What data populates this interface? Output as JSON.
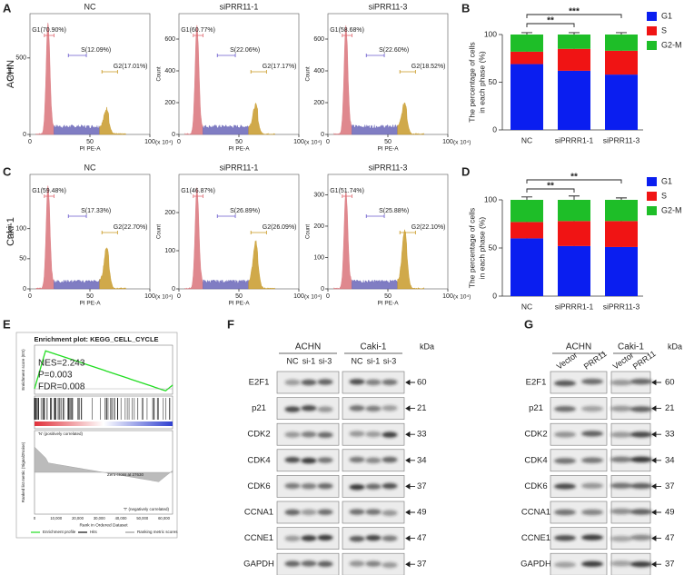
{
  "panel_labels": [
    "A",
    "B",
    "C",
    "D",
    "E",
    "F",
    "G"
  ],
  "flow": [
    {
      "row_label": "ACHN",
      "plots": [
        {
          "title": "NC",
          "y_label": "Count",
          "x_label": "PI PE-A",
          "x_unit": "(x 10⁴)",
          "xlim": [
            0,
            100
          ],
          "xticks": [
            0,
            50,
            100
          ],
          "ylim": [
            0,
            790
          ],
          "yticks": [
            0,
            500
          ],
          "gates": [
            "G1(70.90%)",
            "S(12.09%)",
            "G2(17.01%)"
          ]
        },
        {
          "title": "siPRR11-1",
          "y_label": "Count",
          "x_label": "PI PE-A",
          "x_unit": "(x 10⁴)",
          "xlim": [
            0,
            100
          ],
          "xticks": [
            0,
            50,
            100
          ],
          "ylim": [
            0,
            760
          ],
          "yticks": [
            0,
            200,
            400,
            600
          ],
          "gates": [
            "G1(60.77%)",
            "S(22.06%)",
            "G2(17.17%)"
          ]
        },
        {
          "title": "siPRR11-3",
          "y_label": "Count",
          "x_label": "PI PE-A",
          "x_unit": "(x 10⁴)",
          "xlim": [
            0,
            100
          ],
          "xticks": [
            0,
            50,
            100
          ],
          "ylim": [
            0,
            760
          ],
          "yticks": [
            0,
            200,
            400,
            600
          ],
          "gates": [
            "G1(58.68%)",
            "S(22.60%)",
            "G2(18.52%)"
          ]
        }
      ]
    },
    {
      "row_label": "Caki-1",
      "plots": [
        {
          "title": "NC",
          "y_label": "Count",
          "x_label": "PI PE-A",
          "x_unit": "(x 10⁴)",
          "xlim": [
            0,
            100
          ],
          "xticks": [
            0,
            50,
            100
          ],
          "ylim": [
            0,
            190
          ],
          "yticks": [
            0,
            50,
            100
          ],
          "gates": [
            "G1(59.48%)",
            "S(17.33%)",
            "G2(22.70%)"
          ]
        },
        {
          "title": "siPRR11-1",
          "y_label": "Count",
          "x_label": "PI PE-A",
          "x_unit": "(x 10⁴)",
          "xlim": [
            0,
            100
          ],
          "xticks": [
            0,
            50,
            100
          ],
          "ylim": [
            0,
            300
          ],
          "yticks": [
            0,
            100,
            200
          ],
          "gates": [
            "G1(46.87%)",
            "S(26.89%)",
            "G2(26.09%)"
          ]
        },
        {
          "title": "siPRR11-3",
          "y_label": "Count",
          "x_label": "PI PE-A",
          "x_unit": "(x 10⁴)",
          "xlim": [
            0,
            100
          ],
          "xticks": [
            0,
            50,
            100
          ],
          "ylim": [
            0,
            365
          ],
          "yticks": [
            0,
            100,
            200,
            300
          ],
          "gates": [
            "G1(51.74%)",
            "S(25.88%)",
            "G2(22.10%)"
          ]
        }
      ]
    }
  ],
  "chart_data": [
    {
      "type": "bar",
      "stacked": true,
      "y_label": [
        "The percentage of cells",
        "in each phase (%)"
      ],
      "categories": [
        "NC",
        "siPRRR1-1",
        "siPRR11-3"
      ],
      "ylim": [
        0,
        100
      ],
      "yticks": [
        0,
        50,
        100
      ],
      "legend": "upper right",
      "annotations": [
        "**",
        "***"
      ],
      "series": [
        {
          "name": "G1",
          "color": "#0a1ef0",
          "values": [
            69,
            62,
            58
          ],
          "errors": [
            3,
            3,
            3
          ]
        },
        {
          "name": "S",
          "color": "#f01414",
          "values": [
            13,
            23,
            25
          ],
          "errors": [
            2,
            2,
            2
          ]
        },
        {
          "name": "G2-M",
          "color": "#1ebe28",
          "values": [
            18,
            15,
            17
          ],
          "errors": [
            2,
            2,
            2
          ]
        }
      ]
    },
    {
      "type": "bar",
      "stacked": true,
      "y_label": [
        "The percentage of cells",
        "in each phase (%)"
      ],
      "categories": [
        "NC",
        "siPRRR1-1",
        "siPRR11-3"
      ],
      "ylim": [
        0,
        100
      ],
      "yticks": [
        0,
        50,
        100
      ],
      "legend": "upper right",
      "annotations": [
        "**",
        "**"
      ],
      "series": [
        {
          "name": "G1",
          "color": "#0a1ef0",
          "values": [
            60,
            52,
            51
          ],
          "errors": [
            4,
            5,
            4
          ]
        },
        {
          "name": "S",
          "color": "#f01414",
          "values": [
            17,
            26,
            27
          ],
          "errors": [
            3,
            3,
            3
          ]
        },
        {
          "name": "G2-M",
          "color": "#1ebe28",
          "values": [
            23,
            22,
            22
          ],
          "errors": [
            3,
            4,
            2
          ]
        }
      ]
    }
  ],
  "gsea": {
    "title": "Enrichment plot: KEGG_CELL_CYCLE",
    "stats": [
      "NES=2.243",
      "P=0.003",
      "FDR=0.008"
    ],
    "es_label": "Enrichment score (ES)",
    "metric_label": "Ranked list metric (Signal2Noise)",
    "x_label": "Rank in Ordered Dataset",
    "pos_label": "'N' (positively correlated)",
    "neg_label": "'T' (negatively correlated)",
    "zero_label": "Zero cross at 27630",
    "xticks": [
      "0",
      "10,000",
      "20,000",
      "30,000",
      "40,000",
      "50,000",
      "60,000"
    ],
    "legend": [
      "Enrichment profile",
      "Hits",
      "Ranking metric scores"
    ]
  },
  "blots": [
    {
      "groups": [
        "ACHN",
        "Caki-1"
      ],
      "lanes": [
        "NC",
        "si-1",
        "si-3",
        "NC",
        "si-1",
        "si-3"
      ],
      "unit": "kDa",
      "proteins": [
        "E2F1",
        "p21",
        "CDK2",
        "CDK4",
        "CDK6",
        "CCNA1",
        "CCNE1",
        "GAPDH"
      ],
      "kda": [
        60,
        21,
        33,
        34,
        37,
        49,
        47,
        37
      ]
    },
    {
      "groups": [
        "ACHN",
        "Caki-1"
      ],
      "lanes": [
        "Vector",
        "PRR11",
        "Vector",
        "PRR11"
      ],
      "unit": "kDa",
      "proteins": [
        "E2F1",
        "p21",
        "CDK2",
        "CDK4",
        "CDK6",
        "CCNA1",
        "CCNE1",
        "GAPDH"
      ],
      "kda": [
        60,
        21,
        33,
        34,
        37,
        49,
        47,
        37
      ]
    }
  ]
}
